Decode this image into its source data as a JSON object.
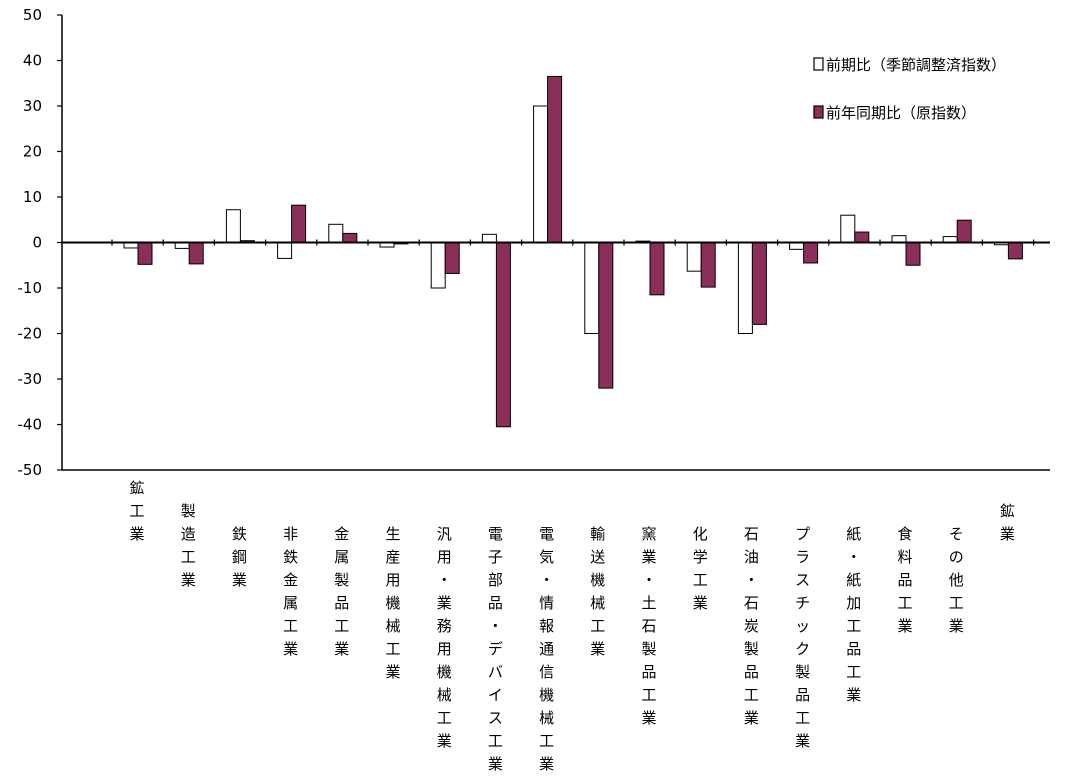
{
  "chart_data": {
    "type": "bar",
    "categories": [
      "鉱工業",
      "製造工業",
      "鉄鋼業",
      "非鉄金属工業",
      "金属製品工業",
      "生産用機械工業",
      "汎用・業務用機械工業",
      "電子部品・デバイス工業",
      "電気・情報通信機械工業",
      "輸送機械工業",
      "窯業・土石製品工業",
      "化学工業",
      "石油・石炭製品工業",
      "プラスチック製品工業",
      "紙・紙加工品工業",
      "食料品工業",
      "その他工業",
      "鉱業"
    ],
    "category_label_offsets": [
      0,
      1,
      2,
      2,
      2,
      2,
      2,
      2,
      2,
      2,
      2,
      2,
      2,
      2,
      2,
      2,
      2,
      1
    ],
    "series": [
      {
        "name": "前期比（季節調整済指数）",
        "color": "#ffffff",
        "values": [
          -1.2,
          -1.3,
          7.2,
          -3.5,
          4.0,
          -1.0,
          -10.0,
          1.8,
          30.0,
          -20.0,
          0.3,
          -6.3,
          -20.0,
          -1.5,
          6.0,
          1.5,
          1.3,
          -0.5
        ]
      },
      {
        "name": "前年同期比（原指数）",
        "color": "#8b2f5a",
        "values": [
          -4.8,
          -4.7,
          0.4,
          8.2,
          2.0,
          -0.3,
          -6.8,
          -40.5,
          36.5,
          -32.0,
          -11.5,
          -9.8,
          -18.0,
          -4.5,
          2.3,
          -5.0,
          4.9,
          -3.6
        ]
      }
    ],
    "ylim": [
      -50,
      50
    ],
    "yticks": [
      50,
      40,
      30,
      20,
      10,
      0,
      -10,
      -20,
      -30,
      -40,
      -50
    ],
    "legend_position": "top-right",
    "grid": false
  }
}
